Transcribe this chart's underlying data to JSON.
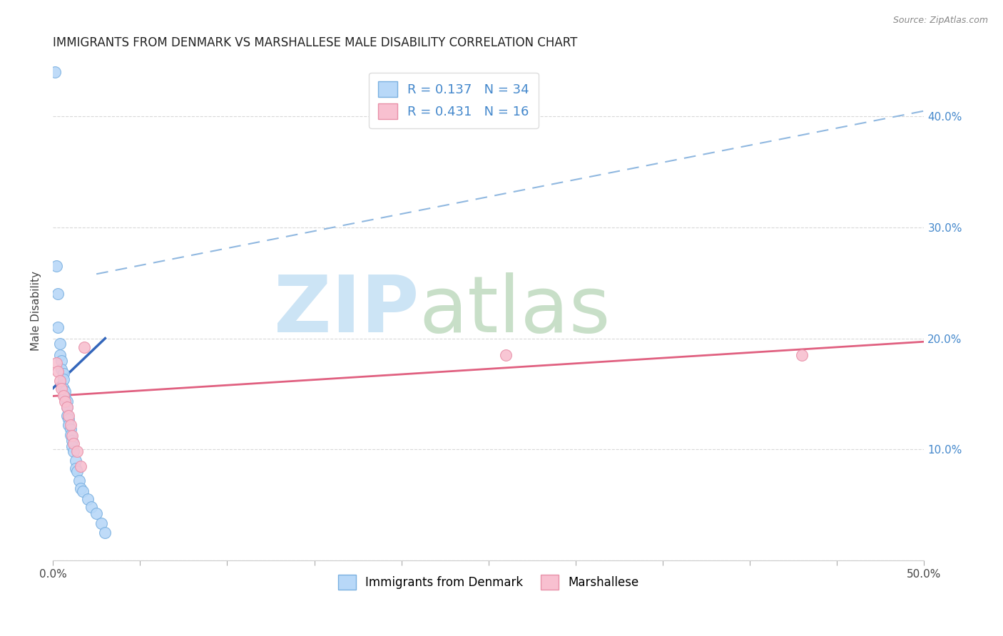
{
  "title": "IMMIGRANTS FROM DENMARK VS MARSHALLESE MALE DISABILITY CORRELATION CHART",
  "source": "Source: ZipAtlas.com",
  "ylabel": "Male Disability",
  "x_min": 0.0,
  "x_max": 0.5,
  "y_min": 0.0,
  "y_max": 0.45,
  "denmark_color": "#b8d8f8",
  "denmark_edge_color": "#7ab0e0",
  "marshallese_color": "#f8c0d0",
  "marshallese_edge_color": "#e890a8",
  "denmark_line_color": "#3366bb",
  "marshallese_line_color": "#e06080",
  "dashed_line_color": "#90b8e0",
  "legend_items": [
    "Immigrants from Denmark",
    "Marshallese"
  ],
  "denmark_x": [
    0.001,
    0.002,
    0.003,
    0.003,
    0.004,
    0.004,
    0.005,
    0.005,
    0.006,
    0.006,
    0.006,
    0.007,
    0.007,
    0.008,
    0.008,
    0.008,
    0.009,
    0.009,
    0.01,
    0.01,
    0.011,
    0.011,
    0.012,
    0.013,
    0.013,
    0.014,
    0.015,
    0.016,
    0.017,
    0.02,
    0.022,
    0.025,
    0.028,
    0.03
  ],
  "denmark_y": [
    0.44,
    0.265,
    0.24,
    0.21,
    0.195,
    0.185,
    0.18,
    0.172,
    0.168,
    0.163,
    0.155,
    0.152,
    0.147,
    0.143,
    0.138,
    0.13,
    0.127,
    0.122,
    0.118,
    0.113,
    0.108,
    0.103,
    0.098,
    0.09,
    0.083,
    0.08,
    0.072,
    0.065,
    0.062,
    0.055,
    0.048,
    0.042,
    0.033,
    0.025
  ],
  "marshallese_x": [
    0.002,
    0.003,
    0.004,
    0.005,
    0.006,
    0.007,
    0.008,
    0.009,
    0.01,
    0.011,
    0.012,
    0.014,
    0.016,
    0.018,
    0.26,
    0.43
  ],
  "marshallese_y": [
    0.178,
    0.17,
    0.162,
    0.155,
    0.148,
    0.143,
    0.138,
    0.13,
    0.122,
    0.112,
    0.105,
    0.098,
    0.085,
    0.192,
    0.185,
    0.185
  ],
  "denmark_trend_x": [
    0.0,
    0.03
  ],
  "denmark_trend_y": [
    0.155,
    0.2
  ],
  "marshallese_trend_x": [
    0.0,
    0.5
  ],
  "marshallese_trend_y": [
    0.148,
    0.197
  ],
  "dashed_trend_x": [
    0.025,
    0.5
  ],
  "dashed_trend_y": [
    0.258,
    0.405
  ]
}
